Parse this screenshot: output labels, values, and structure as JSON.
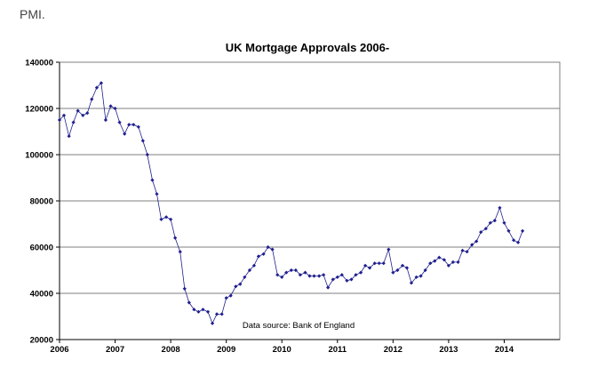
{
  "page_heading": "PMI.",
  "chart_data": {
    "type": "line",
    "title": "UK Mortgage Approvals 2006-",
    "xlabel": "",
    "ylabel": "",
    "annotation": "Data source: Bank of England",
    "x_ticks": [
      "2006",
      "2007",
      "2008",
      "2009",
      "2010",
      "2011",
      "2012",
      "2013",
      "2014"
    ],
    "y_ticks": [
      "20000",
      "40000",
      "60000",
      "80000",
      "100000",
      "120000",
      "140000"
    ],
    "xlim": [
      2006.0,
      2015.0
    ],
    "ylim": [
      20000,
      140000
    ],
    "grid": "horizontal",
    "legend": "none",
    "series_color": "#1f1f8f",
    "series": [
      {
        "values": [
          [
            2006.0,
            115000
          ],
          [
            2006.08,
            117000
          ],
          [
            2006.17,
            108000
          ],
          [
            2006.25,
            114000
          ],
          [
            2006.33,
            119000
          ],
          [
            2006.42,
            117000
          ],
          [
            2006.5,
            118000
          ],
          [
            2006.58,
            124000
          ],
          [
            2006.67,
            129000
          ],
          [
            2006.75,
            131000
          ],
          [
            2006.83,
            115000
          ],
          [
            2006.92,
            121000
          ],
          [
            2007.0,
            120000
          ],
          [
            2007.08,
            114000
          ],
          [
            2007.17,
            109000
          ],
          [
            2007.25,
            113000
          ],
          [
            2007.33,
            113000
          ],
          [
            2007.42,
            112000
          ],
          [
            2007.5,
            106000
          ],
          [
            2007.58,
            100000
          ],
          [
            2007.67,
            89000
          ],
          [
            2007.75,
            83000
          ],
          [
            2007.83,
            72000
          ],
          [
            2007.92,
            73000
          ],
          [
            2008.0,
            72000
          ],
          [
            2008.08,
            64000
          ],
          [
            2008.17,
            58000
          ],
          [
            2008.25,
            42000
          ],
          [
            2008.33,
            36000
          ],
          [
            2008.42,
            33000
          ],
          [
            2008.5,
            32000
          ],
          [
            2008.58,
            33000
          ],
          [
            2008.67,
            32000
          ],
          [
            2008.75,
            27000
          ],
          [
            2008.83,
            31000
          ],
          [
            2008.92,
            31000
          ],
          [
            2009.0,
            38000
          ],
          [
            2009.08,
            39000
          ],
          [
            2009.17,
            43000
          ],
          [
            2009.25,
            44000
          ],
          [
            2009.33,
            47000
          ],
          [
            2009.42,
            50000
          ],
          [
            2009.5,
            52000
          ],
          [
            2009.58,
            56000
          ],
          [
            2009.67,
            57000
          ],
          [
            2009.75,
            60000
          ],
          [
            2009.83,
            59000
          ],
          [
            2009.92,
            48000
          ],
          [
            2010.0,
            47000
          ],
          [
            2010.08,
            49000
          ],
          [
            2010.17,
            50000
          ],
          [
            2010.25,
            50000
          ],
          [
            2010.33,
            48000
          ],
          [
            2010.42,
            49000
          ],
          [
            2010.5,
            47500
          ],
          [
            2010.58,
            47500
          ],
          [
            2010.67,
            47500
          ],
          [
            2010.75,
            48000
          ],
          [
            2010.83,
            42500
          ],
          [
            2010.92,
            46000
          ],
          [
            2011.0,
            47000
          ],
          [
            2011.08,
            48000
          ],
          [
            2011.17,
            45500
          ],
          [
            2011.25,
            46000
          ],
          [
            2011.33,
            48000
          ],
          [
            2011.42,
            49000
          ],
          [
            2011.5,
            52000
          ],
          [
            2011.58,
            51000
          ],
          [
            2011.67,
            53000
          ],
          [
            2011.75,
            53000
          ],
          [
            2011.83,
            53000
          ],
          [
            2011.92,
            59000
          ],
          [
            2012.0,
            49000
          ],
          [
            2012.08,
            50000
          ],
          [
            2012.17,
            52000
          ],
          [
            2012.25,
            51000
          ],
          [
            2012.33,
            44500
          ],
          [
            2012.42,
            47000
          ],
          [
            2012.5,
            47500
          ],
          [
            2012.58,
            50000
          ],
          [
            2012.67,
            53000
          ],
          [
            2012.75,
            54000
          ],
          [
            2012.83,
            55500
          ],
          [
            2012.92,
            54500
          ],
          [
            2013.0,
            52000
          ],
          [
            2013.08,
            53500
          ],
          [
            2013.17,
            53500
          ],
          [
            2013.25,
            58500
          ],
          [
            2013.33,
            58000
          ],
          [
            2013.42,
            61000
          ],
          [
            2013.5,
            62500
          ],
          [
            2013.58,
            66500
          ],
          [
            2013.67,
            68000
          ],
          [
            2013.75,
            70500
          ],
          [
            2013.83,
            71500
          ],
          [
            2013.92,
            77000
          ],
          [
            2014.0,
            70500
          ],
          [
            2014.08,
            67000
          ],
          [
            2014.17,
            63000
          ],
          [
            2014.25,
            62000
          ],
          [
            2014.33,
            67000
          ]
        ]
      }
    ]
  }
}
